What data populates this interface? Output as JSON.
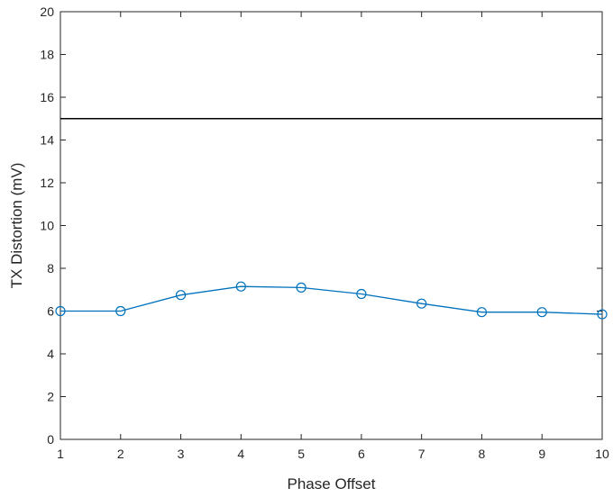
{
  "chart_data": {
    "type": "line",
    "xlabel": "Phase Offset",
    "ylabel": "TX Distortion (mV)",
    "xlim": [
      1,
      10
    ],
    "ylim": [
      0,
      20
    ],
    "xticks": [
      1,
      2,
      3,
      4,
      5,
      6,
      7,
      8,
      9,
      10
    ],
    "yticks": [
      0,
      2,
      4,
      6,
      8,
      10,
      12,
      14,
      16,
      18,
      20
    ],
    "grid": false,
    "series": [
      {
        "x": [
          1,
          2,
          3,
          4,
          5,
          6,
          7,
          8,
          9,
          10
        ],
        "values": [
          6.0,
          6.0,
          6.75,
          7.15,
          7.1,
          6.8,
          6.35,
          5.95,
          5.95,
          5.85
        ],
        "color": "#0072BD",
        "marker": "circle"
      }
    ],
    "reference_line": {
      "y": 15,
      "color": "#000000"
    }
  }
}
